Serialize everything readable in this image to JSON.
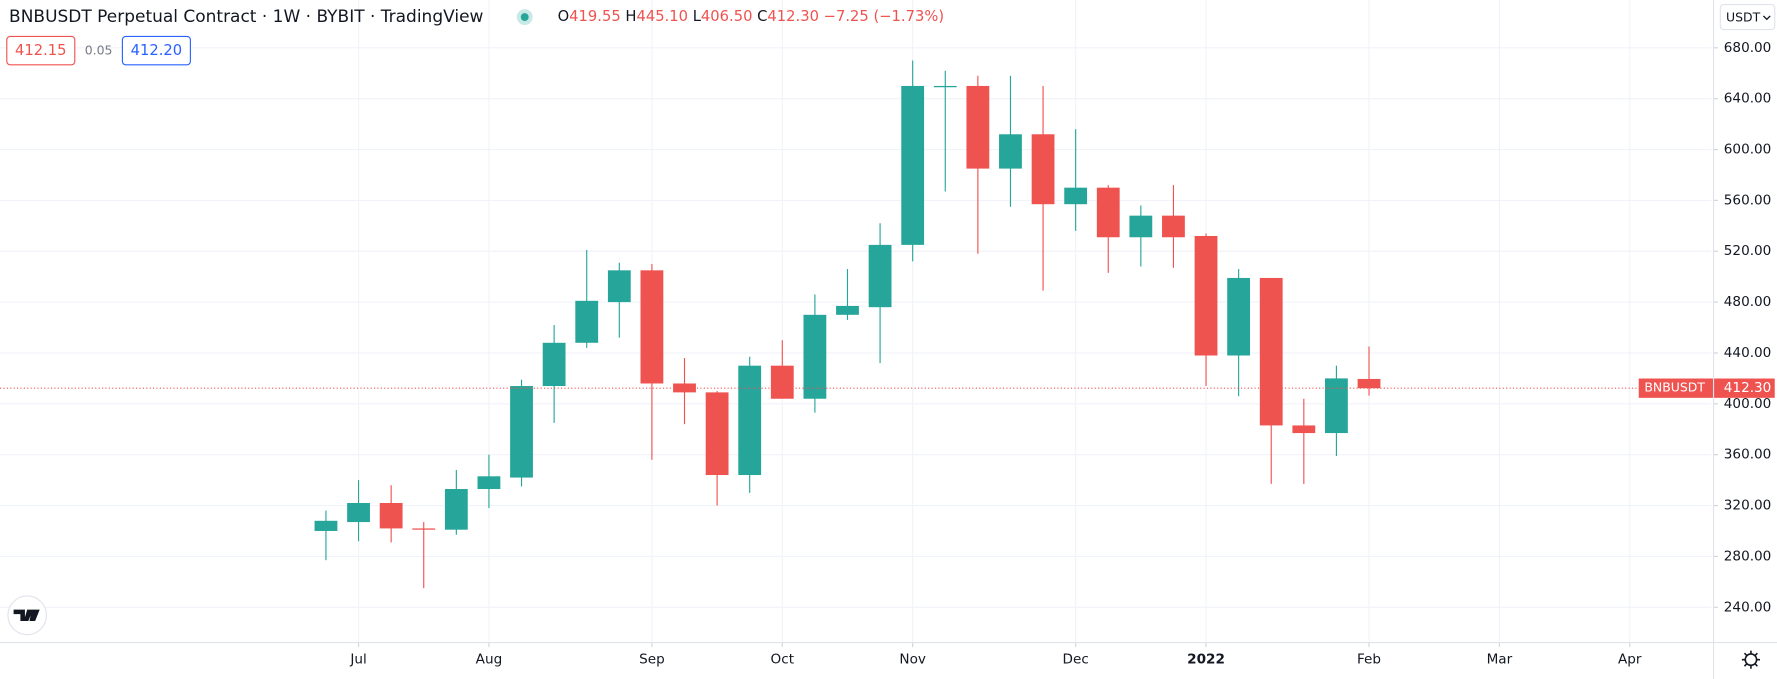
{
  "header": {
    "title": "BNBUSDT Perpetual Contract · 1W · BYBIT · TradingView",
    "ohlc": [
      {
        "key": "O",
        "value": "419.55"
      },
      {
        "key": "H",
        "value": "445.10"
      },
      {
        "key": "L",
        "value": "406.50"
      },
      {
        "key": "C",
        "value": "412.30"
      }
    ],
    "change": "−7.25 (−1.73%)",
    "bid": "412.15",
    "spread": "0.05",
    "ask": "412.20",
    "currency": "USDT"
  },
  "chart_data": {
    "type": "candlestick",
    "open": [
      300,
      307,
      322,
      302,
      301,
      333,
      342,
      414,
      448,
      480,
      505,
      416,
      409,
      344,
      430,
      404,
      470,
      476,
      525,
      649,
      650,
      585,
      612,
      557,
      570,
      531,
      548,
      532,
      438,
      499,
      383,
      377,
      419.55
    ],
    "high": [
      316,
      340,
      336,
      307,
      348,
      360,
      419,
      462,
      521,
      511,
      510,
      436,
      410,
      437,
      450,
      486,
      506,
      542,
      670,
      662,
      658,
      658,
      650,
      616,
      572,
      556,
      572,
      534,
      506,
      499,
      404,
      430,
      445.1
    ],
    "low": [
      277,
      292,
      291,
      255,
      297,
      318,
      335,
      385,
      444,
      452,
      356,
      384,
      320,
      330,
      404,
      393,
      466,
      432,
      512,
      567,
      518,
      555,
      489,
      536,
      503,
      508,
      507,
      414,
      406,
      337,
      337,
      359,
      406.5
    ],
    "close": [
      308,
      322,
      302,
      301,
      333,
      343,
      414,
      448,
      481,
      505,
      416,
      409,
      344,
      430,
      404,
      470,
      477,
      525,
      650,
      650,
      585,
      612,
      557,
      570,
      531,
      548,
      531,
      438,
      499,
      383,
      377,
      420,
      412.3
    ],
    "up_color": "#26a69a",
    "down_color": "#ef5350",
    "ylim": [
      212.2,
      717.6
    ],
    "yticks": [
      {
        "value": 240,
        "label": "240.00"
      },
      {
        "value": 280,
        "label": "280.00"
      },
      {
        "value": 320,
        "label": "320.00"
      },
      {
        "value": 360,
        "label": "360.00"
      },
      {
        "value": 400,
        "label": "400.00"
      },
      {
        "value": 440,
        "label": "440.00"
      },
      {
        "value": 480,
        "label": "480.00"
      },
      {
        "value": 520,
        "label": "520.00"
      },
      {
        "value": 560,
        "label": "560.00"
      },
      {
        "value": 600,
        "label": "600.00"
      },
      {
        "value": 640,
        "label": "640.00"
      },
      {
        "value": 680,
        "label": "680.00"
      }
    ],
    "xlim": [
      -10,
      42.5
    ],
    "xticks": [
      {
        "value": 1,
        "label": "Jul"
      },
      {
        "value": 5,
        "label": "Aug"
      },
      {
        "value": 10,
        "label": "Sep"
      },
      {
        "value": 14,
        "label": "Oct"
      },
      {
        "value": 18,
        "label": "Nov"
      },
      {
        "value": 23,
        "label": "Dec"
      },
      {
        "value": 27,
        "label": "2022"
      },
      {
        "value": 32,
        "label": "Feb"
      },
      {
        "value": 36,
        "label": "Mar"
      },
      {
        "value": 40,
        "label": "Apr"
      }
    ],
    "grid": true,
    "last_price": {
      "symbol": "BNBUSDT",
      "label": "412.30",
      "color": "#ef5350"
    }
  }
}
